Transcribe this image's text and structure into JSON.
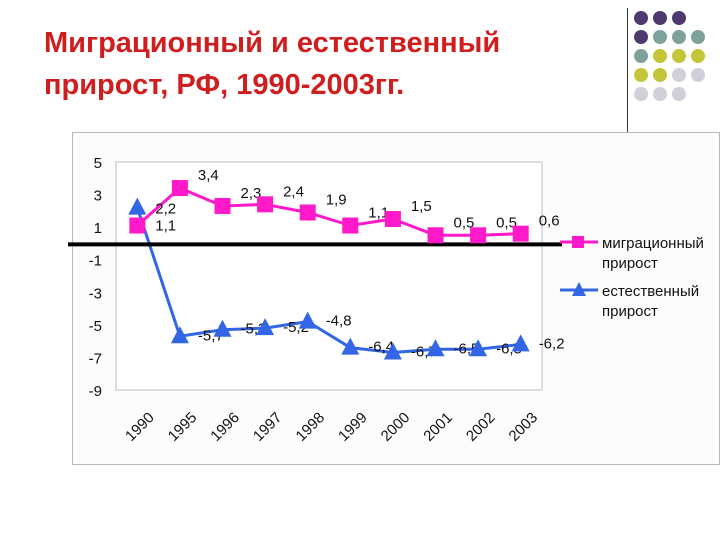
{
  "slide": {
    "title_line1": "Миграционный и естественный",
    "title_line2": "прирост, РФ, 1990-2003гг."
  },
  "decor": {
    "dot_colors": [
      "#4e3a6e",
      "#7fa19c",
      "#c3c63a",
      "#d0d0d8"
    ],
    "dot_pattern": [
      [
        0,
        0,
        0,
        null
      ],
      [
        0,
        1,
        1,
        1
      ],
      [
        1,
        2,
        2,
        2
      ],
      [
        2,
        2,
        3,
        3
      ],
      [
        3,
        3,
        3,
        null
      ]
    ]
  },
  "chart_data": {
    "type": "line",
    "categories": [
      "1990",
      "1995",
      "1996",
      "1997",
      "1998",
      "1999",
      "2000",
      "2001",
      "2002",
      "2003"
    ],
    "ylim": [
      -9,
      5
    ],
    "yticks": [
      "5",
      "3",
      "1",
      "-1",
      "-3",
      "-5",
      "-7",
      "-9"
    ],
    "series": [
      {
        "name": "миграционный прирост",
        "legend_lines": [
          "миграционный",
          "прирост"
        ],
        "marker": "square",
        "color": "#ff19c8",
        "values": [
          1.1,
          3.4,
          2.3,
          2.4,
          1.9,
          1.1,
          1.5,
          0.5,
          0.5,
          0.6
        ],
        "labels": [
          "1,1",
          "3,4",
          "2,3",
          "2,4",
          "1,9",
          "1,1",
          "1,5",
          "0,5",
          "0,5",
          "0,6"
        ]
      },
      {
        "name": "естественный прирост",
        "legend_lines": [
          "естественный",
          "прирост"
        ],
        "marker": "triangle",
        "color": "#3366e6",
        "values": [
          2.2,
          -5.7,
          -5.3,
          -5.2,
          -4.8,
          -6.4,
          -6.7,
          -6.5,
          -6.5,
          -6.2
        ],
        "labels": [
          "2,2",
          "-5,7",
          "-5,3",
          "-5,2",
          "-4,8",
          "-6,4",
          "-6,7",
          "-6,5",
          "-6,5",
          "-6,2"
        ]
      }
    ],
    "zero_line_color": "#000000",
    "grid": false,
    "legend_position": "right"
  }
}
